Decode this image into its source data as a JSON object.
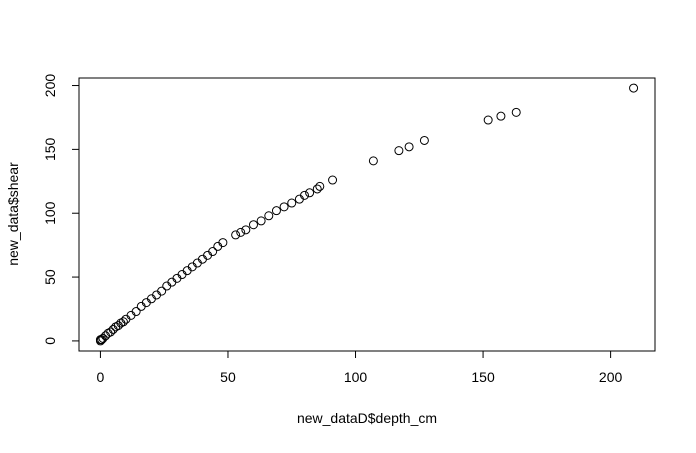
{
  "chart_data": {
    "type": "scatter",
    "x_label": "new_dataD$depth_cm",
    "y_label": "new_data$shear",
    "x": [
      0,
      0,
      0.5,
      1,
      2,
      3,
      4,
      5,
      6,
      7,
      8,
      9,
      10,
      12,
      14,
      16,
      18,
      20,
      22,
      24,
      26,
      28,
      30,
      32,
      34,
      36,
      38,
      40,
      42,
      44,
      46,
      48,
      53,
      55,
      57,
      60,
      63,
      66,
      69,
      72,
      75,
      78,
      80,
      82,
      85,
      86,
      91,
      107,
      117,
      121,
      127,
      152,
      157,
      163,
      209
    ],
    "values": [
      0,
      1,
      1,
      2,
      4,
      6,
      7,
      9,
      11,
      12,
      14,
      15,
      17,
      20,
      23,
      27,
      30,
      33,
      36,
      39,
      43,
      46,
      49,
      52,
      55,
      58,
      61,
      64,
      67,
      70,
      74,
      77,
      83,
      85,
      87,
      91,
      94,
      98,
      102,
      105,
      108,
      111,
      114,
      116,
      119,
      121,
      126,
      141,
      149,
      152,
      157,
      173,
      176,
      179,
      198
    ],
    "color": "#000000",
    "xlim": [
      -8.4,
      217.4
    ],
    "ylim": [
      -7.9,
      205.9
    ],
    "xticks": [
      0,
      50,
      100,
      150,
      200
    ],
    "yticks": [
      0,
      50,
      100,
      150,
      200
    ]
  }
}
